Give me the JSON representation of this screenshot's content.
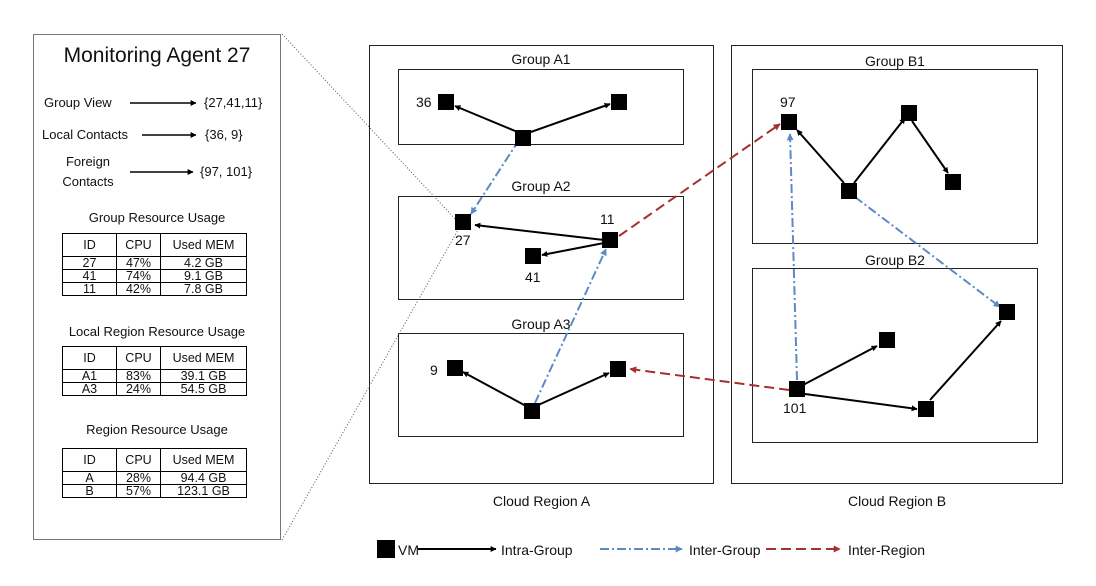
{
  "agent": {
    "title": "Monitoring Agent 27",
    "group_view_label": "Group View",
    "group_view_value": "{27,41,11}",
    "local_contacts_label": "Local Contacts",
    "local_contacts_value": "{36, 9}",
    "foreign_contacts_label_1": "Foreign",
    "foreign_contacts_label_2": "Contacts",
    "foreign_contacts_value": "{97, 101}"
  },
  "tables": {
    "group": {
      "title": "Group Resource Usage",
      "headers": [
        "ID",
        "CPU",
        "Used MEM"
      ],
      "rows": [
        [
          "27",
          "47%",
          "4.2 GB"
        ],
        [
          "41",
          "74%",
          "9.1 GB"
        ],
        [
          "11",
          "42%",
          "7.8 GB"
        ]
      ]
    },
    "local_region": {
      "title": "Local Region Resource Usage",
      "headers": [
        "ID",
        "CPU",
        "Used MEM"
      ],
      "rows": [
        [
          "A1",
          "83%",
          "39.1 GB"
        ],
        [
          "A3",
          "24%",
          "54.5 GB"
        ]
      ]
    },
    "region": {
      "title": "Region Resource Usage",
      "headers": [
        "ID",
        "CPU",
        "Used MEM"
      ],
      "rows": [
        [
          "A",
          "28%",
          "94.4 GB"
        ],
        [
          "B",
          "57%",
          "123.1 GB"
        ]
      ]
    }
  },
  "regions": {
    "a": {
      "label": "Cloud Region A",
      "groups": {
        "a1": "Group A1",
        "a2": "Group A2",
        "a3": "Group A3"
      }
    },
    "b": {
      "label": "Cloud Region B",
      "groups": {
        "b1": "Group B1",
        "b2": "Group B2"
      }
    }
  },
  "vm_labels": {
    "v36": "36",
    "v27": "27",
    "v11": "11",
    "v41": "41",
    "v9": "9",
    "v97": "97",
    "v101": "101"
  },
  "legend": {
    "vm": "VM",
    "intra": "Intra-Group",
    "inter_group": "Inter-Group",
    "inter_region": "Inter-Region"
  },
  "colors": {
    "intra_group": "#000000",
    "inter_group": "#5b8ac6",
    "inter_region": "#a5302e"
  }
}
